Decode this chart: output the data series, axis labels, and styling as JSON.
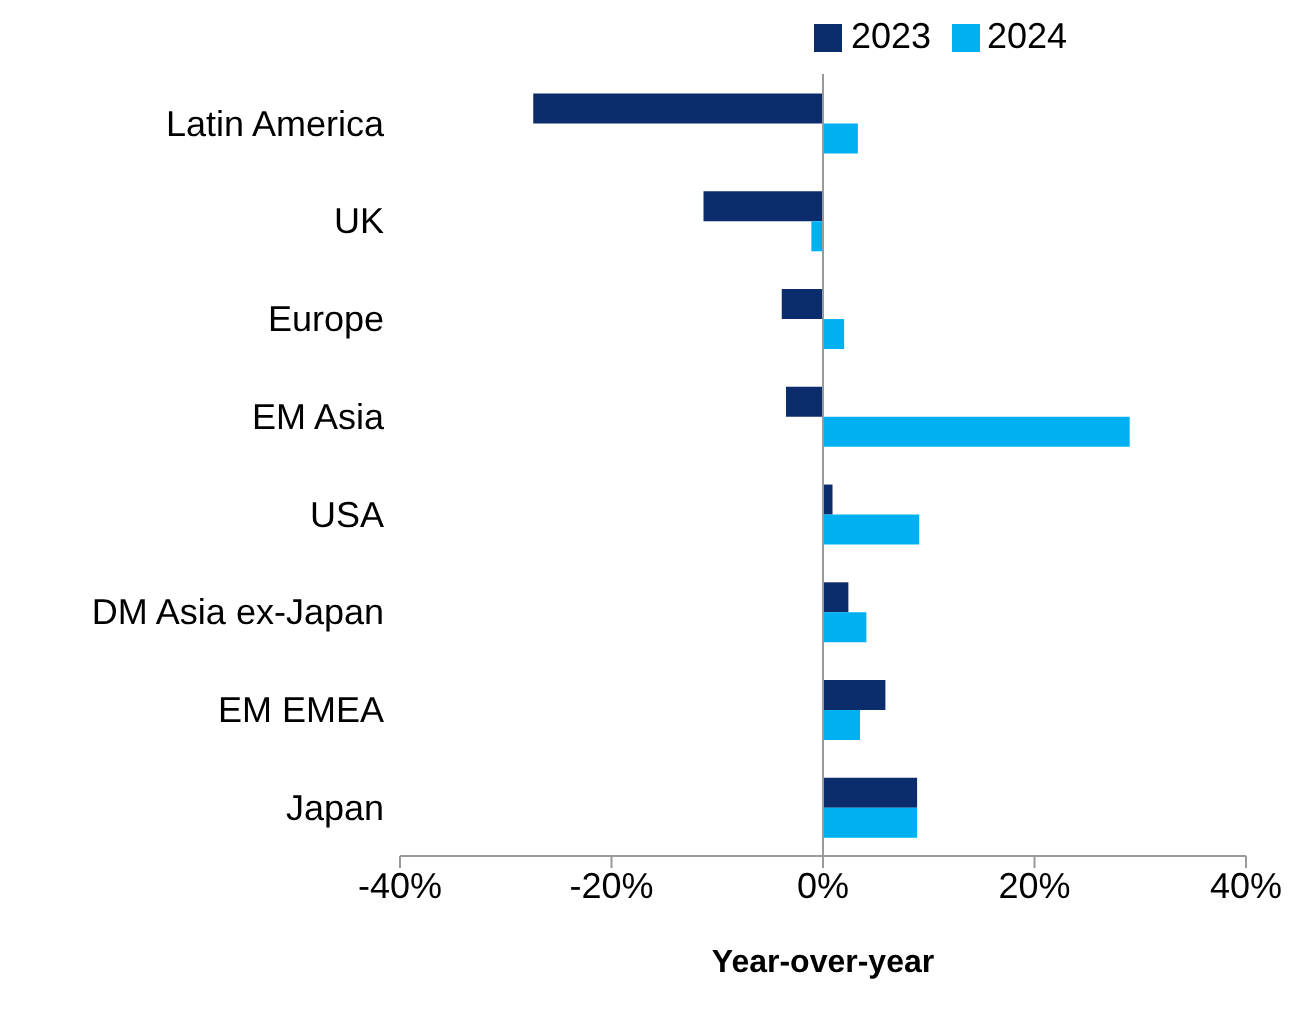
{
  "chart_data": {
    "type": "bar",
    "orientation": "horizontal",
    "xlabel": "Year-over-year",
    "categories": [
      "Latin America",
      "UK",
      "Europe",
      "EM Asia",
      "USA",
      "DM Asia ex-Japan",
      "EM EMEA",
      "Japan"
    ],
    "series": [
      {
        "name": "2023",
        "color": "#0c2d6b",
        "values": [
          -27.4,
          -11.3,
          -3.9,
          -3.5,
          0.9,
          2.4,
          5.9,
          8.9
        ]
      },
      {
        "name": "2024",
        "color": "#00b0f0",
        "values": [
          3.3,
          -1.1,
          2.0,
          29.0,
          9.1,
          4.1,
          3.5,
          8.9
        ]
      }
    ],
    "xlim": [
      -40,
      40
    ],
    "xticks": [
      {
        "value": -40,
        "label": "-40%"
      },
      {
        "value": -20,
        "label": "-20%"
      },
      {
        "value": 0,
        "label": "0%"
      },
      {
        "value": 20,
        "label": "20%"
      },
      {
        "value": 40,
        "label": "40%"
      }
    ],
    "legend": "top"
  }
}
